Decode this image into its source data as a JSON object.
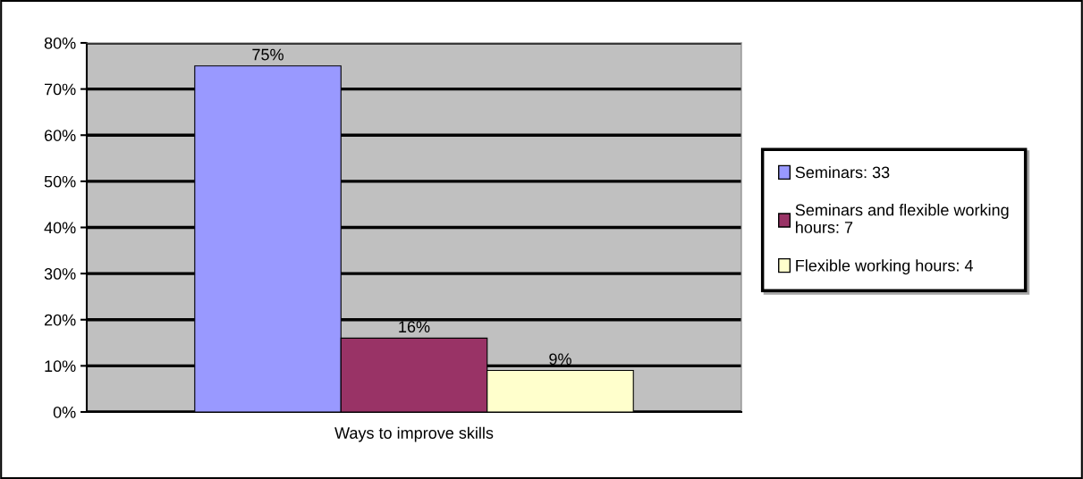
{
  "chart_data": {
    "type": "bar",
    "categories": [
      "Ways to improve skills"
    ],
    "series": [
      {
        "name": "Seminars: 33",
        "color": "#9999ff",
        "values": [
          75
        ],
        "value_labels": [
          "75%"
        ]
      },
      {
        "name": "Seminars and flexible working hours: 7",
        "color": "#993366",
        "values": [
          16
        ],
        "value_labels": [
          "16%"
        ]
      },
      {
        "name": "Flexible working hours: 4",
        "color": "#ffffcc",
        "values": [
          9
        ],
        "value_labels": [
          "9%"
        ]
      }
    ],
    "ylim": [
      0,
      80
    ],
    "yticks": [
      {
        "value": 0,
        "label": "0%"
      },
      {
        "value": 10,
        "label": "10%"
      },
      {
        "value": 20,
        "label": "20%"
      },
      {
        "value": 30,
        "label": "30%"
      },
      {
        "value": 40,
        "label": "40%"
      },
      {
        "value": 50,
        "label": "50%"
      },
      {
        "value": 60,
        "label": "60%"
      },
      {
        "value": 70,
        "label": "70%"
      },
      {
        "value": 80,
        "label": "80%"
      }
    ],
    "grid": "y",
    "legend": "right"
  }
}
